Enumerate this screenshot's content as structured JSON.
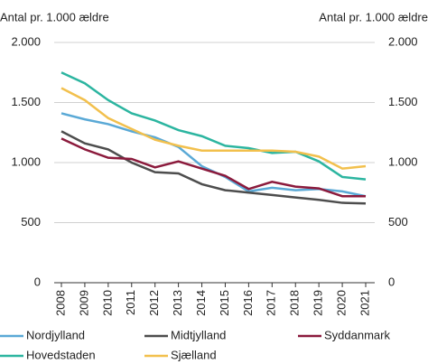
{
  "chart_data": {
    "type": "line",
    "ylabel": "Antal pr. 1.000 ældre",
    "y2label": "Antal pr. 1.000 ældre",
    "categories": [
      "2008",
      "2009",
      "2010",
      "2011",
      "2012",
      "2013",
      "2014",
      "2015",
      "2016",
      "2017",
      "2018",
      "2019",
      "2020",
      "2021"
    ],
    "series": [
      {
        "name": "Nordjylland",
        "color": "#5aa9d6",
        "values": [
          1410,
          1360,
          1320,
          1260,
          1210,
          1130,
          970,
          880,
          760,
          790,
          770,
          780,
          760,
          720
        ]
      },
      {
        "name": "Midtjylland",
        "color": "#4d4d4d",
        "values": [
          1260,
          1160,
          1110,
          1000,
          920,
          910,
          820,
          770,
          750,
          730,
          710,
          690,
          665,
          660
        ]
      },
      {
        "name": "Syddanmark",
        "color": "#8b1a3c",
        "values": [
          1200,
          1110,
          1040,
          1030,
          960,
          1010,
          950,
          890,
          780,
          840,
          800,
          785,
          720,
          720
        ]
      },
      {
        "name": "Hovedstaden",
        "color": "#2cb5a0",
        "values": [
          1750,
          1660,
          1520,
          1410,
          1350,
          1270,
          1220,
          1140,
          1120,
          1080,
          1090,
          1010,
          880,
          860
        ]
      },
      {
        "name": "Sjælland",
        "color": "#f2c04d",
        "values": [
          1620,
          1520,
          1370,
          1280,
          1190,
          1140,
          1100,
          1100,
          1100,
          1100,
          1090,
          1050,
          950,
          970
        ]
      }
    ],
    "ylim": [
      0,
      2000
    ],
    "yticks": [
      0,
      500,
      {
        "value": 1000,
        "label": "1.000"
      },
      {
        "value": 1500,
        "label": "1.500"
      },
      {
        "value": 2000,
        "label": "2.000"
      }
    ],
    "y2lim": [
      0,
      2000
    ],
    "y2ticks": [
      0,
      500,
      {
        "value": 1000,
        "label": "1.000"
      },
      {
        "value": 1500,
        "label": "1.500"
      },
      {
        "value": 2000,
        "label": "2.000"
      }
    ],
    "grid": true,
    "legend": "bottom"
  }
}
